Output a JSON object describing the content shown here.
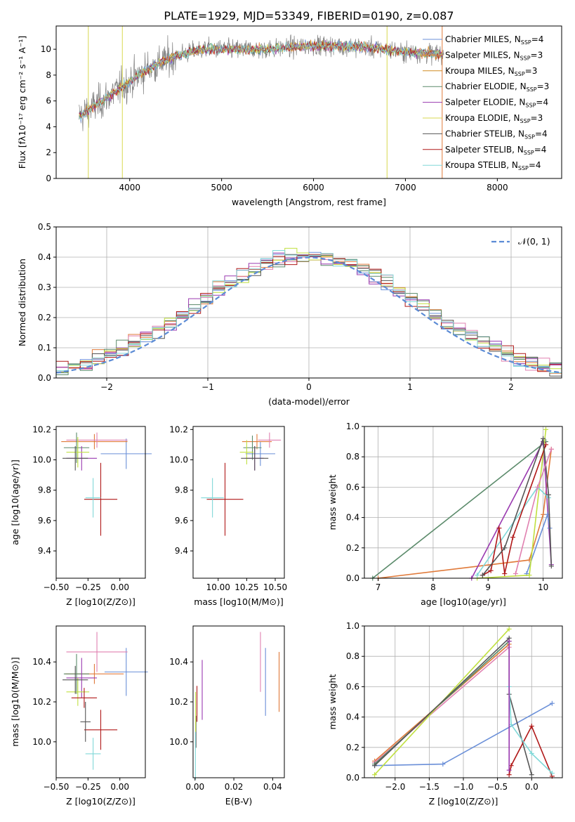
{
  "figure_title": "PLATE=1929, MJD=53349, FIBERID=0190, z=0.087",
  "colors": {
    "chabrier_miles": "#6a8fd8",
    "salpeter_miles": "#e07a3a",
    "kroupa_miles": "#d08a20",
    "chabrier_elodie": "#5a8a6a",
    "salpeter_elodie": "#9a3ab0",
    "kroupa_elodie": "#d8d850",
    "chabrier_stelib": "#555555",
    "salpeter_stelib": "#b01818",
    "kroupa_stelib": "#80d8d8",
    "pink": "#e080b0",
    "lime": "#c0e040",
    "observed": "#808080",
    "normal": "#5b8bd5",
    "grid": "#b0b0b0"
  },
  "chart_data": [
    {
      "type": "line",
      "name": "spectrum",
      "title": "PLATE=1929, MJD=53349, FIBERID=0190, z=0.087",
      "xlabel": "wavelength [Angstrom, rest frame]",
      "ylabel": "Flux [fλ10⁻¹⁷ erg cm⁻² s⁻¹ A⁻¹]",
      "xlim": [
        3200,
        8700
      ],
      "ylim": [
        0,
        11.8
      ],
      "xticks": [
        "4000",
        "5000",
        "6000",
        "7000",
        "8000"
      ],
      "yticks": [
        "0",
        "2",
        "4",
        "6",
        "8",
        "10"
      ],
      "grid": false,
      "legend_position": "right",
      "continuum": {
        "x": [
          3450,
          3600,
          3800,
          4000,
          4200,
          4500,
          4800,
          5000,
          5500,
          6000,
          6500,
          7000,
          7400
        ],
        "y": [
          4.8,
          5.5,
          6.5,
          7.5,
          8.5,
          9.5,
          10.0,
          10.0,
          10.0,
          10.3,
          10.2,
          9.8,
          9.6
        ]
      },
      "series": [
        {
          "name": "Chabrier MILES, N_SSP=4"
        },
        {
          "name": "Salpeter MILES, N_SSP=3"
        },
        {
          "name": "Kroupa MILES, N_SSP=3"
        },
        {
          "name": "Chabrier ELODIE, N_SSP=3"
        },
        {
          "name": "Salpeter ELODIE, N_SSP=4"
        },
        {
          "name": "Kroupa ELODIE, N_SSP=3"
        },
        {
          "name": "Chabrier STELIB, N_SSP=4"
        },
        {
          "name": "Salpeter STELIB, N_SSP=4"
        },
        {
          "name": "Kroupa STELIB, N_SSP=4"
        }
      ]
    },
    {
      "type": "histogram",
      "name": "residuals",
      "xlabel": "(data-model)/error",
      "ylabel": "Normed distribution",
      "xlim": [
        -2.5,
        2.5
      ],
      "ylim": [
        0,
        0.5
      ],
      "xticks": [
        "−2",
        "−1",
        "0",
        "1",
        "2"
      ],
      "yticks": [
        "0.0",
        "0.1",
        "0.2",
        "0.3",
        "0.4",
        "0.5"
      ],
      "grid": true,
      "legend": "𝒩(0, 1)",
      "legend_position": "top-right",
      "bins": 42
    },
    {
      "type": "errorbar",
      "name": "age-vs-Z",
      "xlabel": "Z [log10(Z/Z⊙)]",
      "ylabel": "age [log10(age/yr)]",
      "xlim": [
        -0.5,
        0.2
      ],
      "ylim": [
        9.22,
        10.22
      ],
      "xticks": [
        "−0.50",
        "−0.25",
        "0.00"
      ],
      "yticks": [
        "9.4",
        "9.6",
        "9.8",
        "10.0",
        "10.2"
      ],
      "points": [
        {
          "c": "chabrier_miles",
          "x": 0.05,
          "y": 10.04,
          "xerr": 0.2,
          "yerr": 0.1
        },
        {
          "c": "salpeter_miles",
          "x": -0.2,
          "y": 10.12,
          "xerr": 0.26,
          "yerr": 0.05
        },
        {
          "c": "pink",
          "x": -0.18,
          "y": 10.13,
          "xerr": 0.24,
          "yerr": 0.05
        },
        {
          "c": "chabrier_elodie",
          "x": -0.34,
          "y": 10.08,
          "xerr": 0.1,
          "yerr": 0.1
        },
        {
          "c": "salpeter_elodie",
          "x": -0.3,
          "y": 10.01,
          "xerr": 0.12,
          "yerr": 0.08
        },
        {
          "c": "lime",
          "x": -0.33,
          "y": 10.05,
          "xerr": 0.09,
          "yerr": 0.1
        },
        {
          "c": "chabrier_stelib",
          "x": -0.35,
          "y": 10.01,
          "xerr": 0.1,
          "yerr": 0.08
        },
        {
          "c": "salpeter_stelib",
          "x": -0.15,
          "y": 9.74,
          "xerr": 0.13,
          "yerr": 0.24
        },
        {
          "c": "kroupa_stelib",
          "x": -0.21,
          "y": 9.75,
          "xerr": 0.06,
          "yerr": 0.13
        }
      ]
    },
    {
      "type": "errorbar",
      "name": "age-vs-mass",
      "xlabel": "mass [log10(M/M⊙)]",
      "xlim": [
        9.78,
        10.58
      ],
      "ylim": [
        9.22,
        10.22
      ],
      "xticks": [
        "10.00",
        "10.25",
        "10.50"
      ],
      "yticks": [
        "9.4",
        "9.6",
        "9.8",
        "10.0",
        "10.2"
      ],
      "points": [
        {
          "c": "chabrier_miles",
          "x": 10.37,
          "y": 10.04,
          "xerr": 0.13,
          "yerr": 0.08
        },
        {
          "c": "salpeter_miles",
          "x": 10.34,
          "y": 10.12,
          "xerr": 0.13,
          "yerr": 0.05
        },
        {
          "c": "pink",
          "x": 10.45,
          "y": 10.13,
          "xerr": 0.1,
          "yerr": 0.05
        },
        {
          "c": "chabrier_elodie",
          "x": 10.3,
          "y": 10.08,
          "xerr": 0.08,
          "yerr": 0.08
        },
        {
          "c": "salpeter_elodie",
          "x": 10.32,
          "y": 10.01,
          "xerr": 0.08,
          "yerr": 0.08
        },
        {
          "c": "lime",
          "x": 10.25,
          "y": 10.05,
          "xerr": 0.06,
          "yerr": 0.08
        },
        {
          "c": "chabrier_stelib",
          "x": 10.32,
          "y": 10.01,
          "xerr": 0.12,
          "yerr": 0.08
        },
        {
          "c": "salpeter_stelib",
          "x": 10.06,
          "y": 9.74,
          "xerr": 0.16,
          "yerr": 0.24
        },
        {
          "c": "kroupa_stelib",
          "x": 9.95,
          "y": 9.75,
          "xerr": 0.1,
          "yerr": 0.13
        }
      ]
    },
    {
      "type": "line",
      "name": "mass-weight-vs-age",
      "xlabel": "age [log10(age/yr)]",
      "ylabel": "mass weight",
      "xlim": [
        6.75,
        10.35
      ],
      "ylim": [
        0,
        1.0
      ],
      "xticks": [
        "7",
        "8",
        "9",
        "10"
      ],
      "yticks": [
        "0.0",
        "0.2",
        "0.4",
        "0.6",
        "0.8",
        "1.0"
      ],
      "grid": true,
      "series": [
        {
          "c": "chabrier_elodie",
          "x": [
            6.9,
            10.05
          ],
          "y": [
            0.0,
            0.9
          ]
        },
        {
          "c": "salpeter_miles",
          "x": [
            7.0,
            9.75,
            10.0,
            10.15
          ],
          "y": [
            0.0,
            0.12,
            0.42,
            0.85
          ]
        },
        {
          "c": "salpeter_elodie",
          "x": [
            8.7,
            10.0,
            10.15
          ],
          "y": [
            0.0,
            0.9,
            0.09
          ]
        },
        {
          "c": "chabrier_miles",
          "x": [
            9.7,
            10.08,
            10.12
          ],
          "y": [
            0.03,
            0.42,
            0.33
          ]
        },
        {
          "c": "lime",
          "x": [
            8.8,
            9.75,
            10.05
          ],
          "y": [
            0.0,
            0.02,
            0.98
          ]
        },
        {
          "c": "kroupa_stelib",
          "x": [
            8.8,
            9.9,
            10.1
          ],
          "y": [
            0.02,
            0.6,
            0.53
          ]
        },
        {
          "c": "salpeter_stelib",
          "x": [
            8.9,
            9.05,
            9.2,
            9.3,
            9.45,
            10.05
          ],
          "y": [
            0.02,
            0.05,
            0.33,
            0.03,
            0.27,
            0.88
          ]
        },
        {
          "c": "chabrier_stelib",
          "x": [
            8.9,
            9.3,
            10.0,
            10.1,
            10.15
          ],
          "y": [
            0.02,
            0.2,
            0.92,
            0.55,
            0.08
          ]
        },
        {
          "c": "pink",
          "x": [
            9.5,
            9.9,
            10.15
          ],
          "y": [
            0.03,
            0.6,
            0.85
          ]
        }
      ]
    },
    {
      "type": "errorbar",
      "name": "mass-vs-Z",
      "xlabel": "Z [log10(Z/Z⊙)]",
      "ylabel": "mass [log10(M/M⊙)]",
      "xlim": [
        -0.5,
        0.2
      ],
      "ylim": [
        9.82,
        10.58
      ],
      "xticks": [
        "−0.50",
        "−0.25",
        "0.00"
      ],
      "yticks": [
        "10.0",
        "10.2",
        "10.4"
      ],
      "points": [
        {
          "c": "chabrier_miles",
          "x": 0.05,
          "y": 10.35,
          "xerr": 0.17,
          "yerr": 0.12
        },
        {
          "c": "salpeter_miles",
          "x": -0.2,
          "y": 10.34,
          "xerr": 0.23,
          "yerr": 0.05
        },
        {
          "c": "pink",
          "x": -0.18,
          "y": 10.45,
          "xerr": 0.24,
          "yerr": 0.1
        },
        {
          "c": "chabrier_elodie",
          "x": -0.34,
          "y": 10.34,
          "xerr": 0.1,
          "yerr": 0.1
        },
        {
          "c": "salpeter_elodie",
          "x": -0.3,
          "y": 10.32,
          "xerr": 0.12,
          "yerr": 0.1
        },
        {
          "c": "lime",
          "x": -0.33,
          "y": 10.25,
          "xerr": 0.09,
          "yerr": 0.07
        },
        {
          "c": "chabrier_stelib",
          "x": -0.35,
          "y": 10.31,
          "xerr": 0.1,
          "yerr": 0.07
        },
        {
          "c": "salpeter_stelib",
          "x": -0.15,
          "y": 10.06,
          "xerr": 0.13,
          "yerr": 0.1
        },
        {
          "c": "kroupa_stelib",
          "x": -0.21,
          "y": 9.94,
          "xerr": 0.06,
          "yerr": 0.08
        },
        {
          "c": "salpeter_stelib",
          "x": -0.28,
          "y": 10.22,
          "xerr": 0.1,
          "yerr": 0.05
        },
        {
          "c": "chabrier_stelib",
          "x": -0.27,
          "y": 10.1,
          "xerr": 0.04,
          "yerr": 0.1
        }
      ]
    },
    {
      "type": "errorbar",
      "name": "mass-vs-ebv",
      "xlabel": "E(B-V)",
      "xlim": [
        -0.001,
        0.046
      ],
      "ylim": [
        9.82,
        10.58
      ],
      "xticks": [
        "0.00",
        "0.02",
        "0.04"
      ],
      "yticks": [
        "10.0",
        "10.2",
        "10.4"
      ],
      "points": [
        {
          "c": "chabrier_miles",
          "x": 0.0363,
          "y": 10.3,
          "xerr": 0,
          "yerr": 0.17
        },
        {
          "c": "salpeter_miles",
          "x": 0.0433,
          "y": 10.3,
          "xerr": 0,
          "yerr": 0.15
        },
        {
          "c": "pink",
          "x": 0.0337,
          "y": 10.4,
          "xerr": 0,
          "yerr": 0.15
        },
        {
          "c": "salpeter_elodie",
          "x": 0.0037,
          "y": 10.26,
          "xerr": 0,
          "yerr": 0.15
        },
        {
          "c": "salpeter_stelib",
          "x": 0.001,
          "y": 10.19,
          "xerr": 0,
          "yerr": 0.09
        },
        {
          "c": "chabrier_stelib",
          "x": 0.0005,
          "y": 10.05,
          "xerr": 0,
          "yerr": 0.08
        },
        {
          "c": "kroupa_stelib",
          "x": 0.0002,
          "y": 9.93,
          "xerr": 0,
          "yerr": 0.12
        },
        {
          "c": "lime",
          "x": 0.0003,
          "y": 10.15,
          "xerr": 0,
          "yerr": 0.1
        }
      ]
    },
    {
      "type": "line",
      "name": "mass-weight-vs-Z",
      "xlabel": "Z [log10(Z/Z⊙)]",
      "ylabel": "mass weight",
      "xlim": [
        -2.45,
        0.45
      ],
      "ylim": [
        0,
        1.0
      ],
      "xticks": [
        "−2.0",
        "−1.5",
        "−1.0",
        "−0.5",
        "0.0"
      ],
      "yticks": [
        "0.0",
        "0.2",
        "0.4",
        "0.6",
        "0.8",
        "1.0"
      ],
      "grid": true,
      "series": [
        {
          "c": "chabrier_miles",
          "x": [
            -2.3,
            -1.3,
            0.3
          ],
          "y": [
            0.08,
            0.09,
            0.49
          ]
        },
        {
          "c": "salpeter_miles",
          "x": [
            -2.3,
            -0.33
          ],
          "y": [
            0.11,
            0.88
          ]
        },
        {
          "c": "pink",
          "x": [
            -2.3,
            -0.33
          ],
          "y": [
            0.1,
            0.86
          ]
        },
        {
          "c": "chabrier_elodie",
          "x": [
            -2.3,
            -0.33
          ],
          "y": [
            0.09,
            0.9
          ]
        },
        {
          "c": "lime",
          "x": [
            -2.3,
            -0.33
          ],
          "y": [
            0.02,
            0.98
          ]
        },
        {
          "c": "chabrier_stelib",
          "x": [
            -2.3,
            -0.33,
            -0.33,
            0.0
          ],
          "y": [
            0.08,
            0.92,
            0.55,
            0.02
          ]
        },
        {
          "c": "salpeter_stelib",
          "x": [
            -0.33,
            -0.3,
            0.0,
            0.3
          ],
          "y": [
            0.02,
            0.08,
            0.34,
            0.01
          ]
        },
        {
          "c": "kroupa_stelib",
          "x": [
            -0.33,
            -0.3,
            0.0,
            0.3
          ],
          "y": [
            0.6,
            0.35,
            0.16,
            0.03
          ]
        },
        {
          "c": "salpeter_elodie",
          "x": [
            -0.33,
            -0.33
          ],
          "y": [
            0.05,
            0.9
          ]
        }
      ]
    }
  ]
}
